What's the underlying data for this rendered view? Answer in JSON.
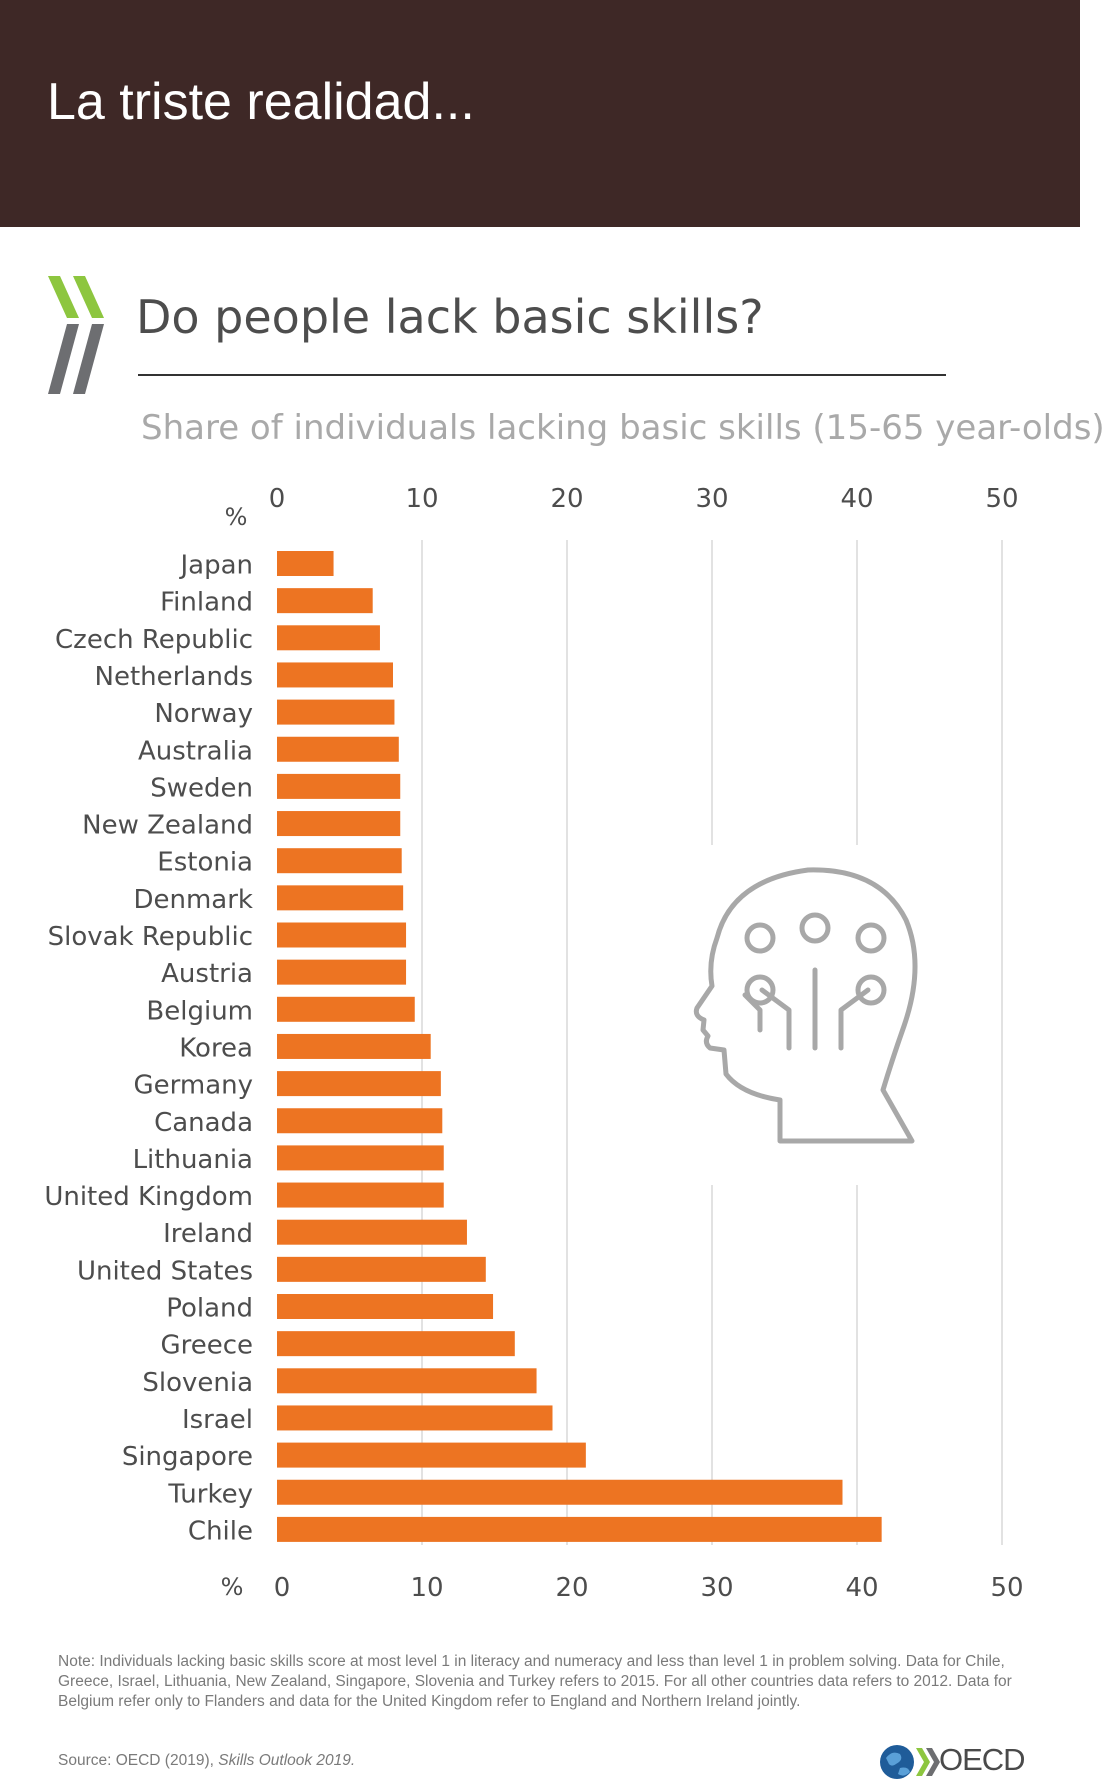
{
  "header": {
    "title": "La triste realidad..."
  },
  "figure": {
    "title": "Do people lack basic skills?",
    "subtitle": "Share of individuals lacking basic skills (15-65 year-olds)",
    "note": "Note: Individuals lacking basic skills score at most level 1 in literacy and numeracy and less than level 1 in problem solving. Data for Chile, Greece, Israel, Lithuania, New Zealand, Singapore, Slovenia and Turkey refers to 2015. For all other countries data refers to 2012. Data for Belgium refer only to Flanders and data for the United Kingdom refer to England and Northern Ireland jointly.",
    "source_prefix": "Source: OECD (2019), ",
    "source_publication": "Skills Outlook 2019.",
    "logo_text": "OECD",
    "logo_icon": "oecd-globe-icon",
    "brand_icon": "oecd-chevrons-icon",
    "illustration_icon": "head-circuit-icon"
  },
  "colors": {
    "header_bg": "#3e2826",
    "bar": "#ed7422",
    "chevron_green": "#8dc63f",
    "chevron_gray": "#6d6e71",
    "grid": "#d9d9d9",
    "icon_stroke": "#a8a8a8"
  },
  "chart_data": {
    "type": "bar",
    "orientation": "horizontal",
    "title": "Do people lack basic skills?",
    "subtitle": "Share of individuals lacking basic skills (15-65 year-olds)",
    "xlabel": "%",
    "ylabel": "",
    "xlim": [
      0,
      50
    ],
    "ticks": [
      "0",
      "10",
      "20",
      "30",
      "40",
      "50"
    ],
    "grid": true,
    "axis_position": "top and bottom",
    "categories": [
      "Japan",
      "Finland",
      "Czech Republic",
      "Netherlands",
      "Norway",
      "Australia",
      "Sweden",
      "New Zealand",
      "Estonia",
      "Denmark",
      "Slovak Republic",
      "Austria",
      "Belgium",
      "Korea",
      "Germany",
      "Canada",
      "Lithuania",
      "United Kingdom",
      "Ireland",
      "United States",
      "Poland",
      "Greece",
      "Slovenia",
      "Israel",
      "Singapore",
      "Turkey",
      "Chile"
    ],
    "values": [
      3.9,
      6.6,
      7.1,
      8.0,
      8.1,
      8.4,
      8.5,
      8.5,
      8.6,
      8.7,
      8.9,
      8.9,
      9.5,
      10.6,
      11.3,
      11.4,
      11.5,
      11.5,
      13.1,
      14.4,
      14.9,
      16.4,
      17.9,
      19.0,
      21.3,
      39.0,
      41.7
    ]
  }
}
